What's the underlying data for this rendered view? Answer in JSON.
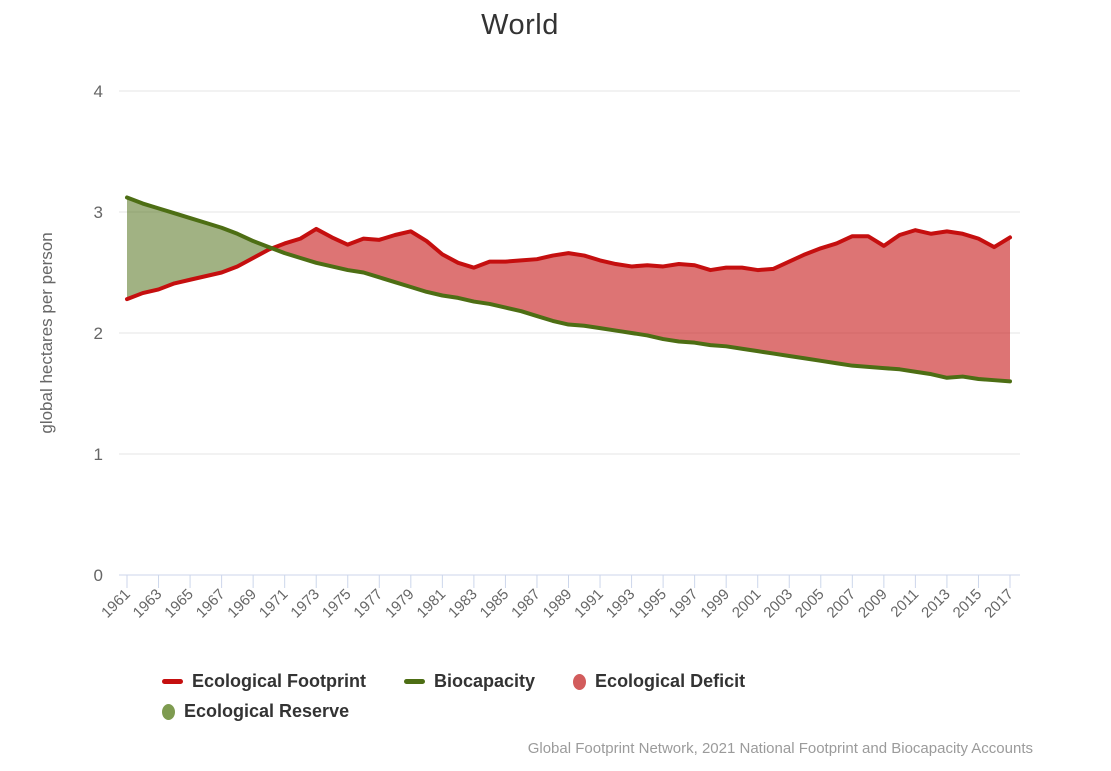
{
  "title": "World",
  "attribution": "Global Footprint Network, 2021 National Footprint and Biocapacity Accounts",
  "colors": {
    "footprint_line": "#c50f0f",
    "biocapacity_line": "#4d6e14",
    "deficit_fill": "rgba(197,15,15,0.58)",
    "reserve_fill": "rgba(77,110,20,0.53)",
    "grid_line": "#e6e6e6",
    "axis_line": "#ccd6eb",
    "axis_text": "#666666",
    "title_text": "#333333"
  },
  "legend": {
    "items": [
      {
        "label": "Ecological Footprint",
        "marker": "line",
        "color": "#c50f0f"
      },
      {
        "label": "Biocapacity",
        "marker": "line",
        "color": "#4d6e14"
      },
      {
        "label": "Ecological Deficit",
        "marker": "ellipse",
        "color": "#d25c5c"
      },
      {
        "label": "Ecological Reserve",
        "marker": "ellipse",
        "color": "#7e9b50"
      }
    ]
  },
  "chart_data": {
    "type": "area",
    "title": "World",
    "xlabel": "",
    "ylabel": "global hectares per person",
    "ylim": [
      0,
      4
    ],
    "y_ticks": [
      0,
      1,
      2,
      3,
      4
    ],
    "grid": true,
    "legend_position": "bottom",
    "x_tick_labels": [
      "1961",
      "1963",
      "1965",
      "1967",
      "1969",
      "1971",
      "1973",
      "1975",
      "1977",
      "1979",
      "1981",
      "1983",
      "1985",
      "1987",
      "1989",
      "1991",
      "1993",
      "1995",
      "1997",
      "1999",
      "2001",
      "2003",
      "2005",
      "2007",
      "2009",
      "2011",
      "2013",
      "2015",
      "2017"
    ],
    "years": [
      1961,
      1962,
      1963,
      1964,
      1965,
      1966,
      1967,
      1968,
      1969,
      1970,
      1971,
      1972,
      1973,
      1974,
      1975,
      1976,
      1977,
      1978,
      1979,
      1980,
      1981,
      1982,
      1983,
      1984,
      1985,
      1986,
      1987,
      1988,
      1989,
      1990,
      1991,
      1992,
      1993,
      1994,
      1995,
      1996,
      1997,
      1998,
      1999,
      2000,
      2001,
      2002,
      2003,
      2004,
      2005,
      2006,
      2007,
      2008,
      2009,
      2010,
      2011,
      2012,
      2013,
      2014,
      2015,
      2016,
      2017
    ],
    "series": [
      {
        "name": "Ecological Footprint",
        "color": "#c50f0f",
        "values": [
          2.28,
          2.33,
          2.36,
          2.41,
          2.44,
          2.47,
          2.5,
          2.55,
          2.62,
          2.69,
          2.74,
          2.78,
          2.86,
          2.79,
          2.73,
          2.78,
          2.77,
          2.81,
          2.84,
          2.76,
          2.65,
          2.58,
          2.54,
          2.59,
          2.59,
          2.6,
          2.61,
          2.64,
          2.66,
          2.64,
          2.6,
          2.57,
          2.55,
          2.56,
          2.55,
          2.57,
          2.56,
          2.52,
          2.54,
          2.54,
          2.52,
          2.53,
          2.59,
          2.65,
          2.7,
          2.74,
          2.8,
          2.8,
          2.72,
          2.81,
          2.85,
          2.82,
          2.84,
          2.82,
          2.78,
          2.71,
          2.79
        ]
      },
      {
        "name": "Biocapacity",
        "color": "#4d6e14",
        "values": [
          3.12,
          3.07,
          3.03,
          2.99,
          2.95,
          2.91,
          2.87,
          2.82,
          2.76,
          2.71,
          2.66,
          2.62,
          2.58,
          2.55,
          2.52,
          2.5,
          2.46,
          2.42,
          2.38,
          2.34,
          2.31,
          2.29,
          2.26,
          2.24,
          2.21,
          2.18,
          2.14,
          2.1,
          2.07,
          2.06,
          2.04,
          2.02,
          2.0,
          1.98,
          1.95,
          1.93,
          1.92,
          1.9,
          1.89,
          1.87,
          1.85,
          1.83,
          1.81,
          1.79,
          1.77,
          1.75,
          1.73,
          1.72,
          1.71,
          1.7,
          1.68,
          1.66,
          1.63,
          1.64,
          1.62,
          1.61,
          1.6
        ]
      }
    ],
    "regions": [
      {
        "name": "Ecological Deficit",
        "fill": "rgba(197,15,15,0.58)"
      },
      {
        "name": "Ecological Reserve",
        "fill": "rgba(77,110,20,0.53)"
      }
    ]
  }
}
